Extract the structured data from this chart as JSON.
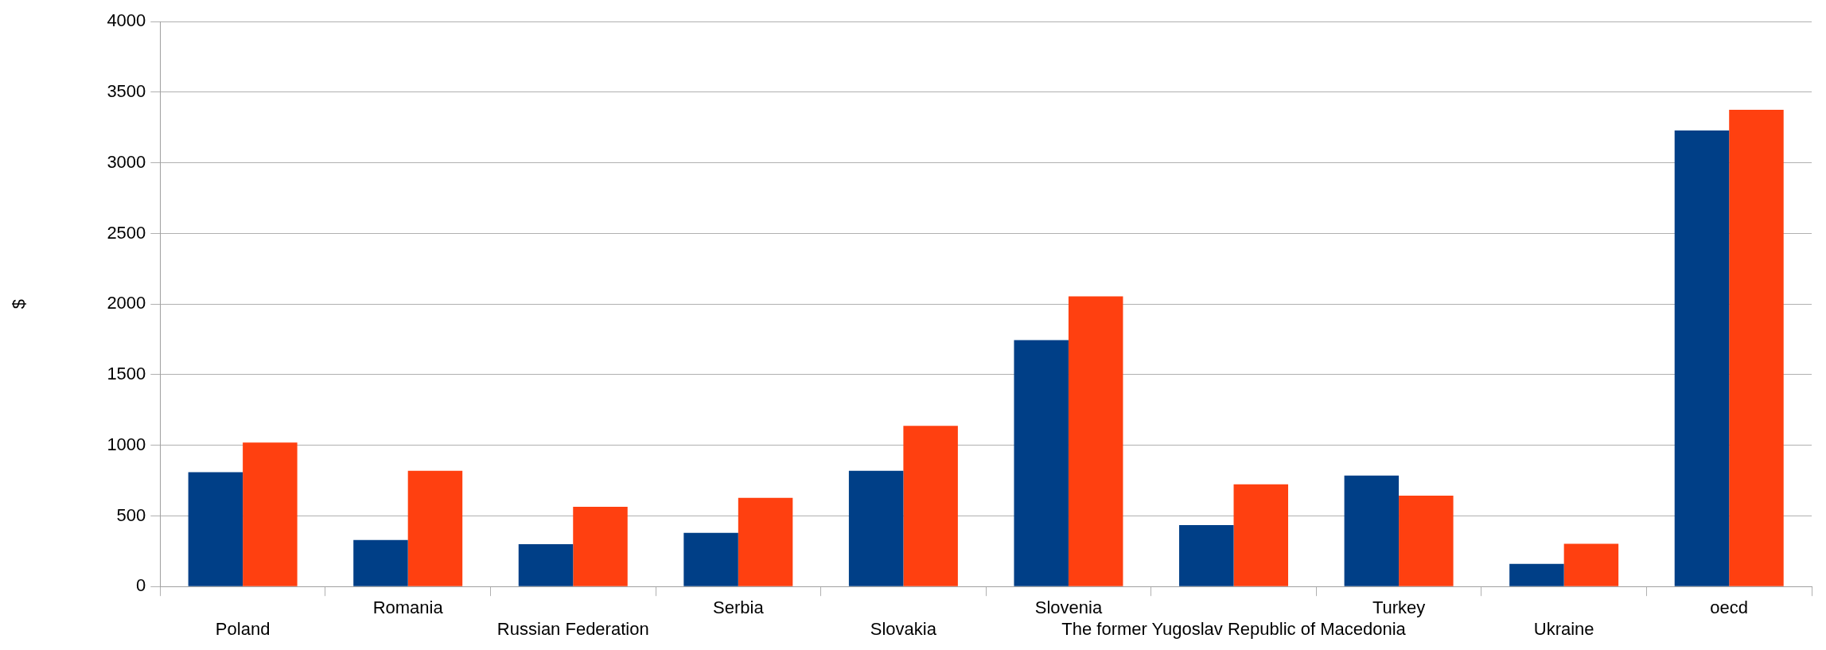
{
  "chart_data": {
    "type": "bar",
    "ylabel": "$",
    "categories": [
      "Poland",
      "Romania",
      "Russian Federation",
      "Serbia",
      "Slovakia",
      "Slovenia",
      "The former Yugoslav Republic of Macedonia",
      "Turkey",
      "Ukraine",
      "oecd"
    ],
    "series": [
      {
        "color": "#003f87",
        "values": [
          810,
          330,
          300,
          380,
          820,
          1745,
          435,
          785,
          160,
          3230
        ]
      },
      {
        "color": "#ff4010",
        "values": [
          1020,
          820,
          565,
          628,
          1138,
          2055,
          723,
          643,
          303,
          3376
        ]
      }
    ],
    "ylim": [
      0,
      4000
    ],
    "yticks": [
      0,
      500,
      1000,
      1500,
      2000,
      2500,
      3000,
      3500,
      4000
    ],
    "grid": "y",
    "legend": false
  }
}
